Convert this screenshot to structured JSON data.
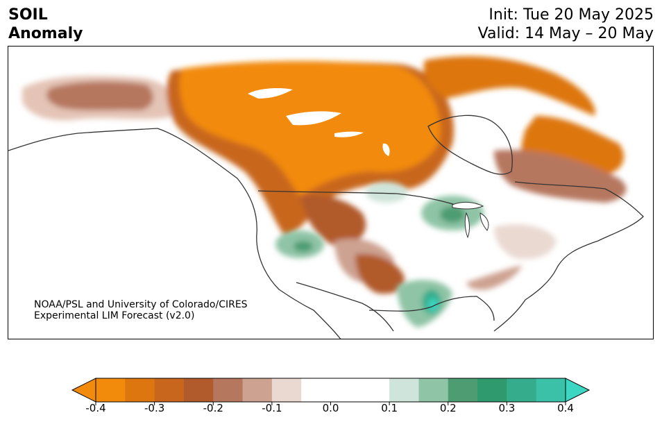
{
  "title": {
    "line1": "SOIL",
    "line2": "Anomaly"
  },
  "header": {
    "init": "Init: Tue 20 May 2025",
    "valid": "Valid: 14 May – 20 May"
  },
  "credit": {
    "line1": "NOAA/PSL and University of Colorado/CIRES",
    "line2": "Experimental LIM Forecast (v2.0)"
  },
  "colorbar": {
    "ticks": [
      "-0.4",
      "-0.3",
      "-0.2",
      "-0.1",
      "0.0",
      "0.1",
      "0.2",
      "0.3",
      "0.4"
    ],
    "levels": [
      -0.4,
      -0.35,
      -0.3,
      -0.25,
      -0.2,
      -0.15,
      -0.1,
      -0.05,
      0.05,
      0.1,
      0.15,
      0.2,
      0.25,
      0.3,
      0.35,
      0.4
    ],
    "colors": [
      "#f28a0b",
      "#dd760f",
      "#c8661d",
      "#b15a2c",
      "#b6775f",
      "#cda291",
      "#ead9d1",
      "#ffffff",
      "#ffffff",
      "#cfe4da",
      "#8fc4a6",
      "#4e9c72",
      "#2e9a6e",
      "#35ad8c",
      "#3bc1a8",
      "#3dd6c2"
    ],
    "extend": "both"
  },
  "map": {
    "projection": "North America",
    "variable": "soil moisture anomaly"
  }
}
